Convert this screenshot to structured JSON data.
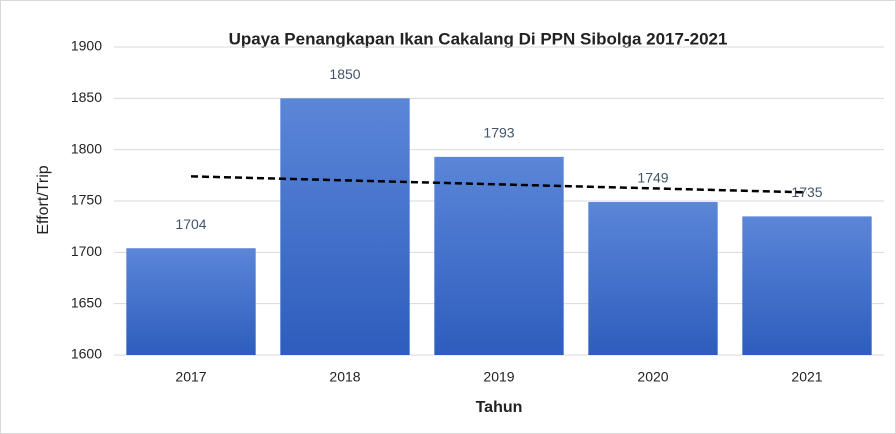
{
  "chart_data": {
    "type": "bar",
    "title": "Upaya Penangkapan Ikan Cakalang Di PPN Sibolga 2017-2021",
    "x_label": "Tahun",
    "y_label": "Effort/Trip",
    "categories": [
      "2017",
      "2018",
      "2019",
      "2020",
      "2021"
    ],
    "values": [
      1704,
      1850,
      1793,
      1749,
      1735
    ],
    "color": "#4472c4",
    "ylim": [
      1600,
      1900
    ],
    "yticks": [
      1600,
      1650,
      1700,
      1750,
      1800,
      1850,
      1900
    ],
    "grid": true,
    "trendline": true,
    "data_labels": true
  }
}
